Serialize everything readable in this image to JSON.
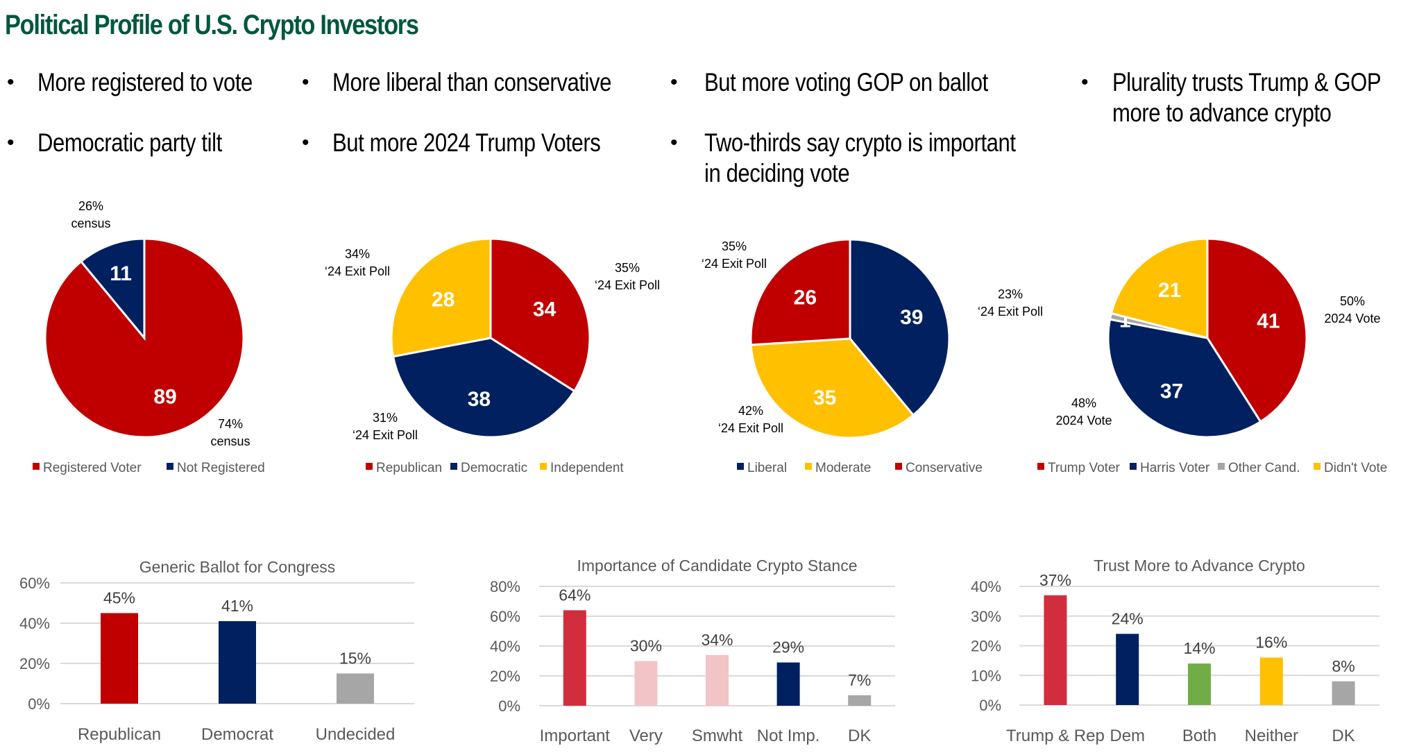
{
  "page_title": "Political Profile of U.S. Crypto Investors",
  "bullets": [
    {
      "lines": [
        "More registered to vote"
      ]
    },
    {
      "lines": [
        "Democratic party tilt"
      ]
    },
    {
      "lines": [
        "More liberal than conservative"
      ]
    },
    {
      "lines": [
        "But more 2024 Trump Voters"
      ]
    },
    {
      "lines": [
        "But more voting GOP on ballot"
      ]
    },
    {
      "lines": [
        "Two-thirds say crypto is important",
        "in deciding vote"
      ]
    },
    {
      "lines": [
        "Plurality trusts Trump & GOP",
        "more to advance crypto"
      ]
    }
  ],
  "colors": {
    "red": "#C00000",
    "navy": "#002060",
    "yellow": "#FFC000",
    "grey": "#A6A6A6",
    "bright_red": "#D22D3D",
    "pink": "#F2C4C8",
    "green": "#70AD47",
    "title_green": "#00573F"
  },
  "chart_data": [
    {
      "type": "pie",
      "id": "registration",
      "slices": [
        {
          "label": "Registered Voter",
          "value": 89,
          "color": "#C00000",
          "note": [
            "74%",
            "census"
          ]
        },
        {
          "label": "Not Registered",
          "value": 11,
          "color": "#002060",
          "note": [
            "26%",
            "census"
          ]
        }
      ],
      "legend": [
        "Registered Voter",
        "Not Registered"
      ],
      "legend_position": "bottom"
    },
    {
      "type": "pie",
      "id": "party",
      "slices": [
        {
          "label": "Republican",
          "value": 34,
          "color": "#C00000",
          "note": [
            "35%",
            "‘24 Exit Poll"
          ]
        },
        {
          "label": "Democratic",
          "value": 38,
          "color": "#002060",
          "note": [
            "31%",
            "‘24 Exit Poll"
          ]
        },
        {
          "label": "Independent",
          "value": 28,
          "color": "#FFC000",
          "note": [
            "34%",
            "‘24 Exit Poll"
          ]
        }
      ],
      "legend": [
        "Republican",
        "Democratic",
        "Independent"
      ],
      "legend_position": "bottom"
    },
    {
      "type": "pie",
      "id": "ideology",
      "slices": [
        {
          "label": "Liberal",
          "value": 39,
          "color": "#002060",
          "note": [
            "23%",
            "‘24 Exit Poll"
          ]
        },
        {
          "label": "Moderate",
          "value": 35,
          "color": "#FFC000",
          "note": [
            "42%",
            "‘24 Exit Poll"
          ]
        },
        {
          "label": "Conservative",
          "value": 26,
          "color": "#C00000",
          "note": [
            "35%",
            "‘24 Exit Poll"
          ]
        }
      ],
      "legend": [
        "Liberal",
        "Moderate",
        "Conservative"
      ],
      "legend_position": "bottom"
    },
    {
      "type": "pie",
      "id": "vote2024",
      "slices": [
        {
          "label": "Trump Voter",
          "value": 41,
          "color": "#C00000",
          "note": [
            "50%",
            "2024 Vote"
          ]
        },
        {
          "label": "Harris Voter",
          "value": 37,
          "color": "#002060",
          "note": [
            "48%",
            "2024 Vote"
          ]
        },
        {
          "label": "Other Cand.",
          "value": 1,
          "color": "#A6A6A6",
          "note": null
        },
        {
          "label": "Didn't Vote",
          "value": 21,
          "color": "#FFC000",
          "note": null
        }
      ],
      "legend": [
        "Trump Voter",
        "Harris Voter",
        "Other Cand.",
        "Didn't Vote"
      ],
      "legend_position": "bottom"
    },
    {
      "type": "bar",
      "id": "generic_ballot",
      "title": "Generic Ballot for Congress",
      "categories": [
        "Republican",
        "Democrat",
        "Undecided"
      ],
      "values": [
        45,
        41,
        15
      ],
      "value_labels": [
        "45%",
        "41%",
        "15%"
      ],
      "colors": [
        "#C00000",
        "#002060",
        "#A6A6A6"
      ],
      "yticks": [
        "0%",
        "20%",
        "40%",
        "60%"
      ],
      "ylim": [
        0,
        60
      ],
      "xlabel": "",
      "ylabel": "",
      "grid": true
    },
    {
      "type": "bar",
      "id": "importance",
      "title": "Importance of Candidate Crypto Stance",
      "categories": [
        "Important",
        "Very",
        "Smwht",
        "Not Imp.",
        "DK"
      ],
      "values": [
        64,
        30,
        34,
        29,
        7
      ],
      "value_labels": [
        "64%",
        "30%",
        "34%",
        "29%",
        "7%"
      ],
      "colors": [
        "#D22D3D",
        "#F2C4C8",
        "#F2C4C8",
        "#002060",
        "#A6A6A6"
      ],
      "yticks": [
        "0%",
        "20%",
        "40%",
        "60%",
        "80%"
      ],
      "ylim": [
        0,
        80
      ],
      "xlabel": "",
      "ylabel": "",
      "grid": true
    },
    {
      "type": "bar",
      "id": "trust",
      "title": "Trust More to Advance Crypto",
      "categories": [
        "Trump & Rep",
        "Dem",
        "Both",
        "Neither",
        "DK"
      ],
      "values": [
        37,
        24,
        14,
        16,
        8
      ],
      "value_labels": [
        "37%",
        "24%",
        "14%",
        "16%",
        "8%"
      ],
      "colors": [
        "#D22D3D",
        "#002060",
        "#70AD47",
        "#FFC000",
        "#A6A6A6"
      ],
      "yticks": [
        "0%",
        "10%",
        "20%",
        "30%",
        "40%"
      ],
      "ylim": [
        0,
        40
      ],
      "xlabel": "",
      "ylabel": "",
      "grid": true
    }
  ]
}
